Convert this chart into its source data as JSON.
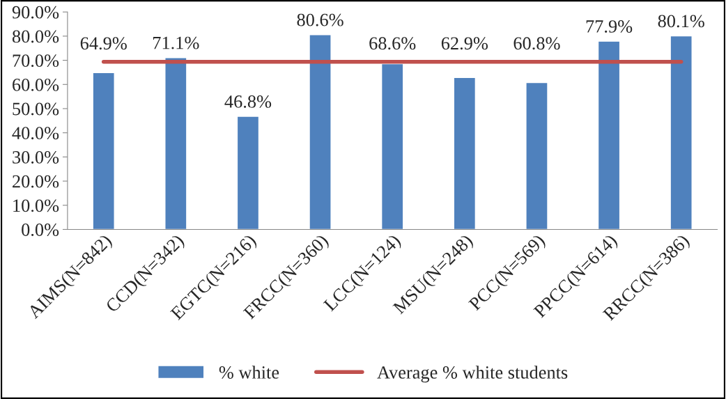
{
  "chart_data": {
    "type": "bar",
    "categories": [
      "AIMS(N=842)",
      "CCD(N=342)",
      "EGTC(N=216)",
      "FRCC(N=360)",
      "LCC(N=124)",
      "MSU(N=248)",
      "PCC(N=569)",
      "PPCC(N=614)",
      "RRCC(N=386)"
    ],
    "series": [
      {
        "name": "% white",
        "color": "#4f81bd",
        "values": [
          64.9,
          71.1,
          46.8,
          80.6,
          68.6,
          62.9,
          60.8,
          77.9,
          80.1
        ],
        "value_labels": [
          "64.9%",
          "71.1%",
          "46.8%",
          "80.6%",
          "68.6%",
          "62.9%",
          "60.8%",
          "77.9%",
          "80.1%"
        ]
      },
      {
        "name": "Average % white students",
        "type": "line",
        "color": "#c0504d",
        "values": [
          69.4,
          69.4,
          69.4,
          69.4,
          69.4,
          69.4,
          69.4,
          69.4,
          69.4
        ]
      }
    ],
    "ylim": [
      0,
      90
    ],
    "yticks": [
      {
        "value": 0,
        "label": "0.0%"
      },
      {
        "value": 10,
        "label": "10.0%"
      },
      {
        "value": 20,
        "label": "20.0%"
      },
      {
        "value": 30,
        "label": "30.0%"
      },
      {
        "value": 40,
        "label": "40.0%"
      },
      {
        "value": 50,
        "label": "50.0%"
      },
      {
        "value": 60,
        "label": "60.0%"
      },
      {
        "value": 70,
        "label": "70.0%"
      },
      {
        "value": 80,
        "label": "80.0%"
      },
      {
        "value": 90,
        "label": "90.0%"
      }
    ],
    "grid": false,
    "legend": "bottom",
    "marker": "none",
    "line_style": "solid"
  }
}
